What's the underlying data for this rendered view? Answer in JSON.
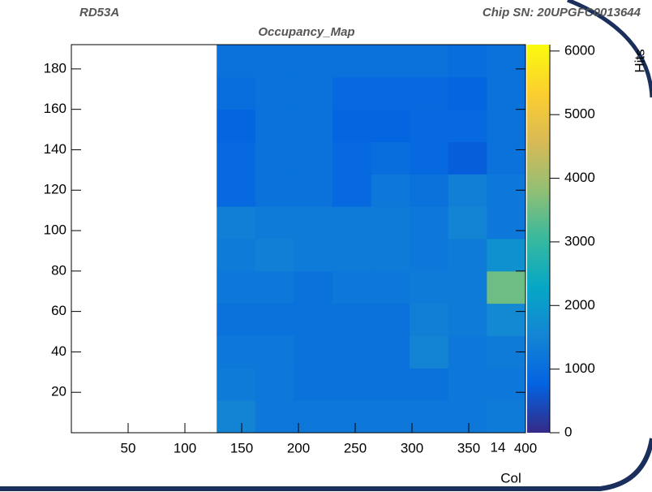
{
  "chart_data": {
    "type": "heatmap",
    "experiment": "RD53A",
    "chip": "Chip SN: 20UPGFC0013644",
    "title": "Occupancy_Map",
    "xlabel": "Col",
    "zlabel": "Hits",
    "page_number": "14",
    "xlim": [
      0,
      400
    ],
    "ylim": [
      0,
      192
    ],
    "zlim": [
      0,
      6100
    ],
    "xticks": [
      50,
      100,
      150,
      200,
      250,
      300,
      350,
      400
    ],
    "yticks": [
      20,
      40,
      60,
      80,
      100,
      120,
      140,
      160,
      180
    ],
    "zticks": [
      0,
      1000,
      2000,
      3000,
      4000,
      5000,
      6000
    ],
    "xbins": [
      128,
      162,
      196,
      230,
      264,
      298,
      332,
      366,
      400
    ],
    "ybins": [
      0,
      16,
      32,
      48,
      64,
      80,
      96,
      112,
      128,
      144,
      160,
      176,
      192
    ],
    "colormap": [
      "#352a87",
      "#0363e1",
      "#1485d4",
      "#06a7c6",
      "#38b99e",
      "#92bf73",
      "#d9ba56",
      "#fcce2e",
      "#f9fb0e"
    ],
    "z": [
      [
        1500,
        1200,
        1200,
        1200,
        1200,
        1200,
        1200,
        1300
      ],
      [
        1300,
        1200,
        1100,
        1100,
        1100,
        1100,
        1200,
        1200
      ],
      [
        1200,
        1200,
        1100,
        1100,
        1100,
        1500,
        1200,
        1300
      ],
      [
        1100,
        1100,
        1100,
        1100,
        1100,
        1400,
        1300,
        1600
      ],
      [
        1200,
        1200,
        1100,
        1200,
        1200,
        1300,
        1300,
        3500
      ],
      [
        1300,
        1400,
        1300,
        1300,
        1300,
        1200,
        1300,
        1800
      ],
      [
        1400,
        1300,
        1300,
        1300,
        1300,
        1200,
        1500,
        1200
      ],
      [
        900,
        1100,
        1100,
        900,
        1200,
        1100,
        1400,
        1200
      ],
      [
        900,
        1100,
        1100,
        900,
        1000,
        900,
        700,
        1100
      ],
      [
        800,
        1100,
        1100,
        800,
        800,
        900,
        900,
        1100
      ],
      [
        1000,
        1100,
        1100,
        900,
        900,
        900,
        800,
        1100
      ],
      [
        1100,
        1100,
        1100,
        1100,
        1100,
        1100,
        1000,
        1100
      ]
    ]
  }
}
